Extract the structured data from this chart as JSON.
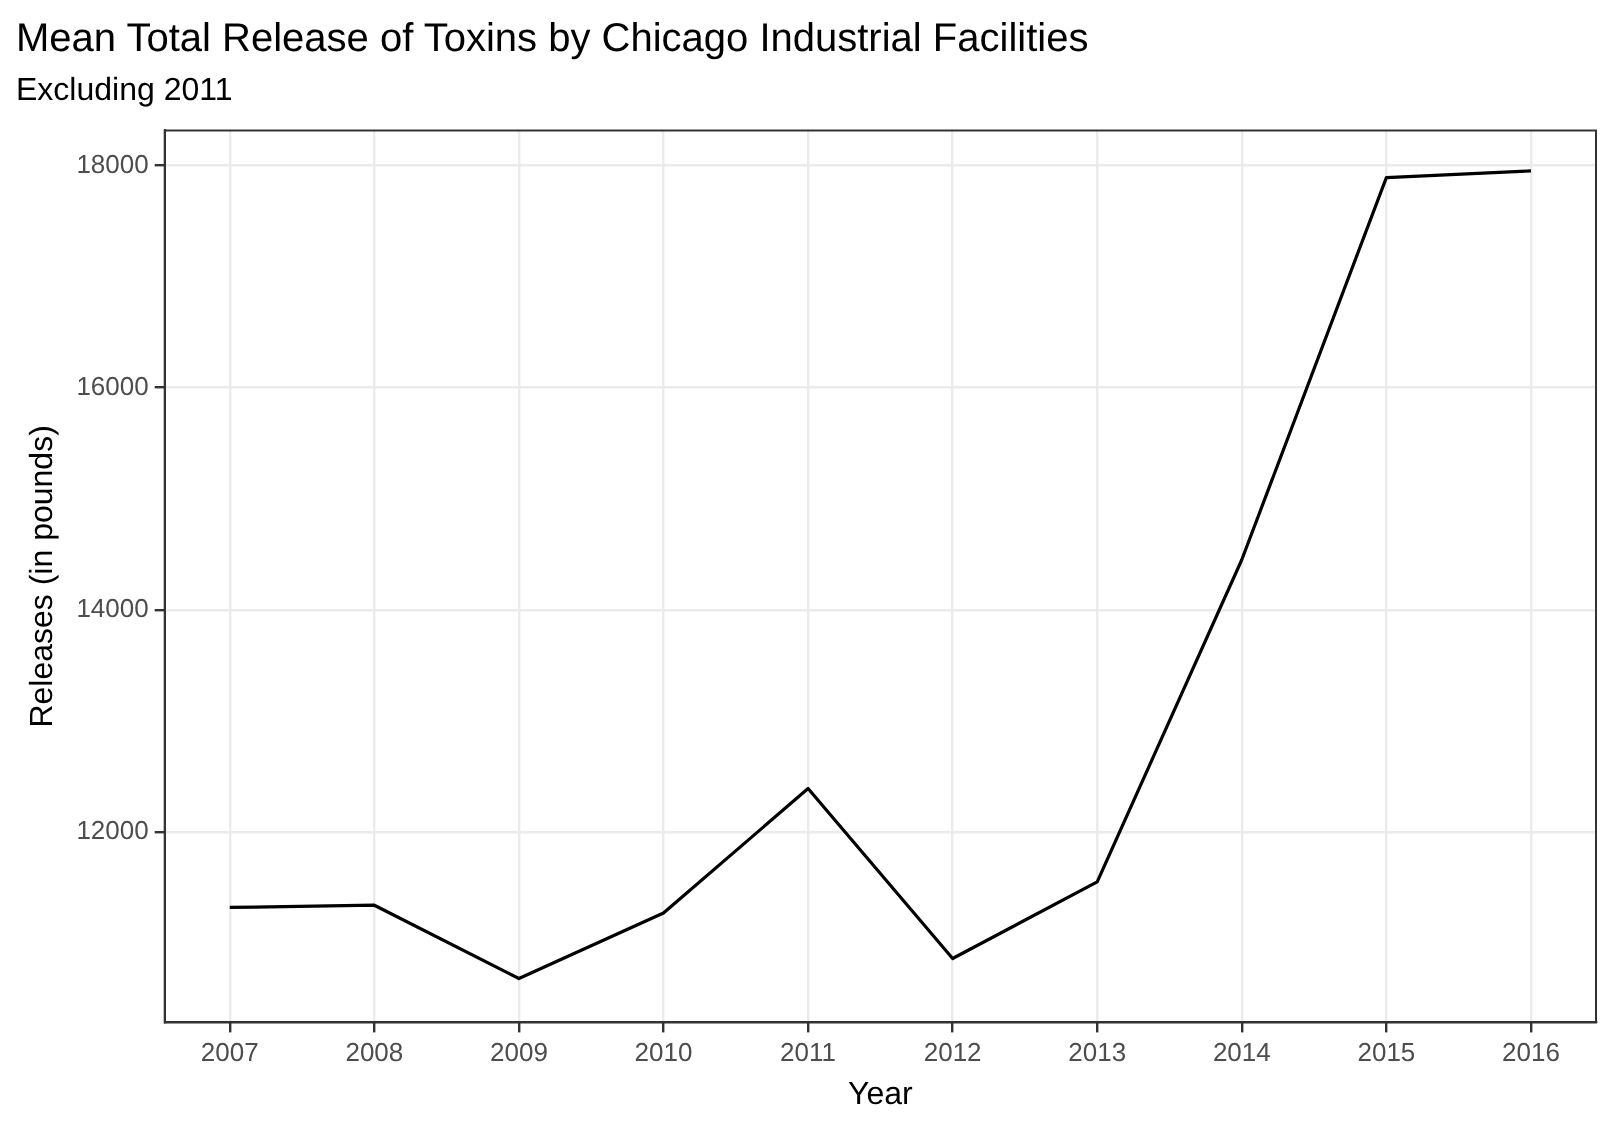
{
  "chart_data": {
    "type": "line",
    "title": "Mean Total Release of Toxins by Chicago Industrial Facilities",
    "subtitle": "Excluding 2011",
    "xlabel": "Year",
    "ylabel": "Releases (in pounds)",
    "x": [
      2007,
      2008,
      2009,
      2010,
      2011,
      2012,
      2013,
      2014,
      2015,
      2016
    ],
    "series": [
      {
        "color": "#000000",
        "values": [
          11320,
          11340,
          10680,
          11270,
          12390,
          10860,
          11550,
          14450,
          17890,
          17950
        ]
      }
    ],
    "xlim": [
      2006.55,
      2016.45
    ],
    "xticks": [
      2007,
      2008,
      2009,
      2010,
      2011,
      2012,
      2013,
      2014,
      2015,
      2016
    ],
    "ylim": [
      10285,
      18315
    ],
    "yticks": [
      12000,
      14000,
      16000,
      18000
    ],
    "grid": true,
    "legend": false,
    "marker": "none",
    "line_style": "solid"
  }
}
